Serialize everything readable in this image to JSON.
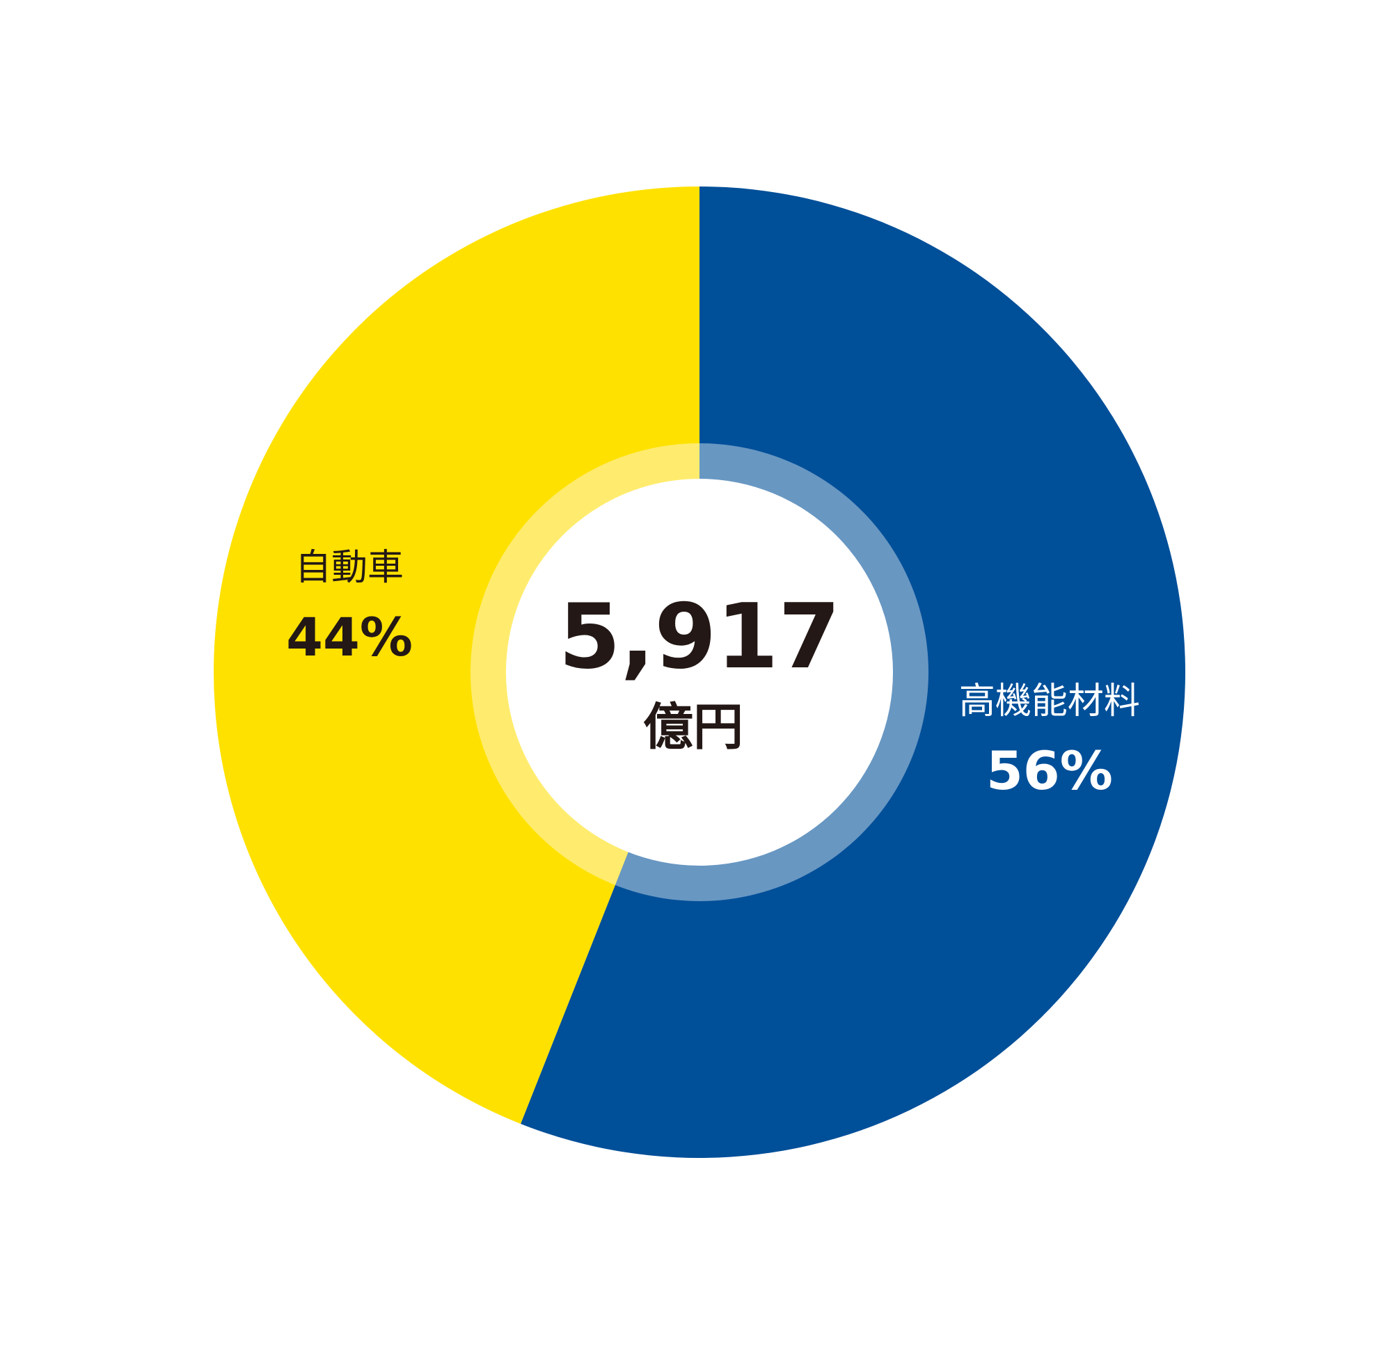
{
  "chart_data": {
    "type": "pie",
    "categories": [
      "高機能材料",
      "自動車"
    ],
    "values": [
      56,
      44
    ],
    "value_labels": [
      "56%",
      "44%"
    ],
    "colors": [
      "#004f99",
      "#ffe100"
    ],
    "ring_colors": [
      "#6897c2",
      "#ffec6e"
    ],
    "label_colors": [
      "#ffffff",
      "#231815"
    ],
    "center_value": "5,917",
    "center_unit": "億円"
  }
}
